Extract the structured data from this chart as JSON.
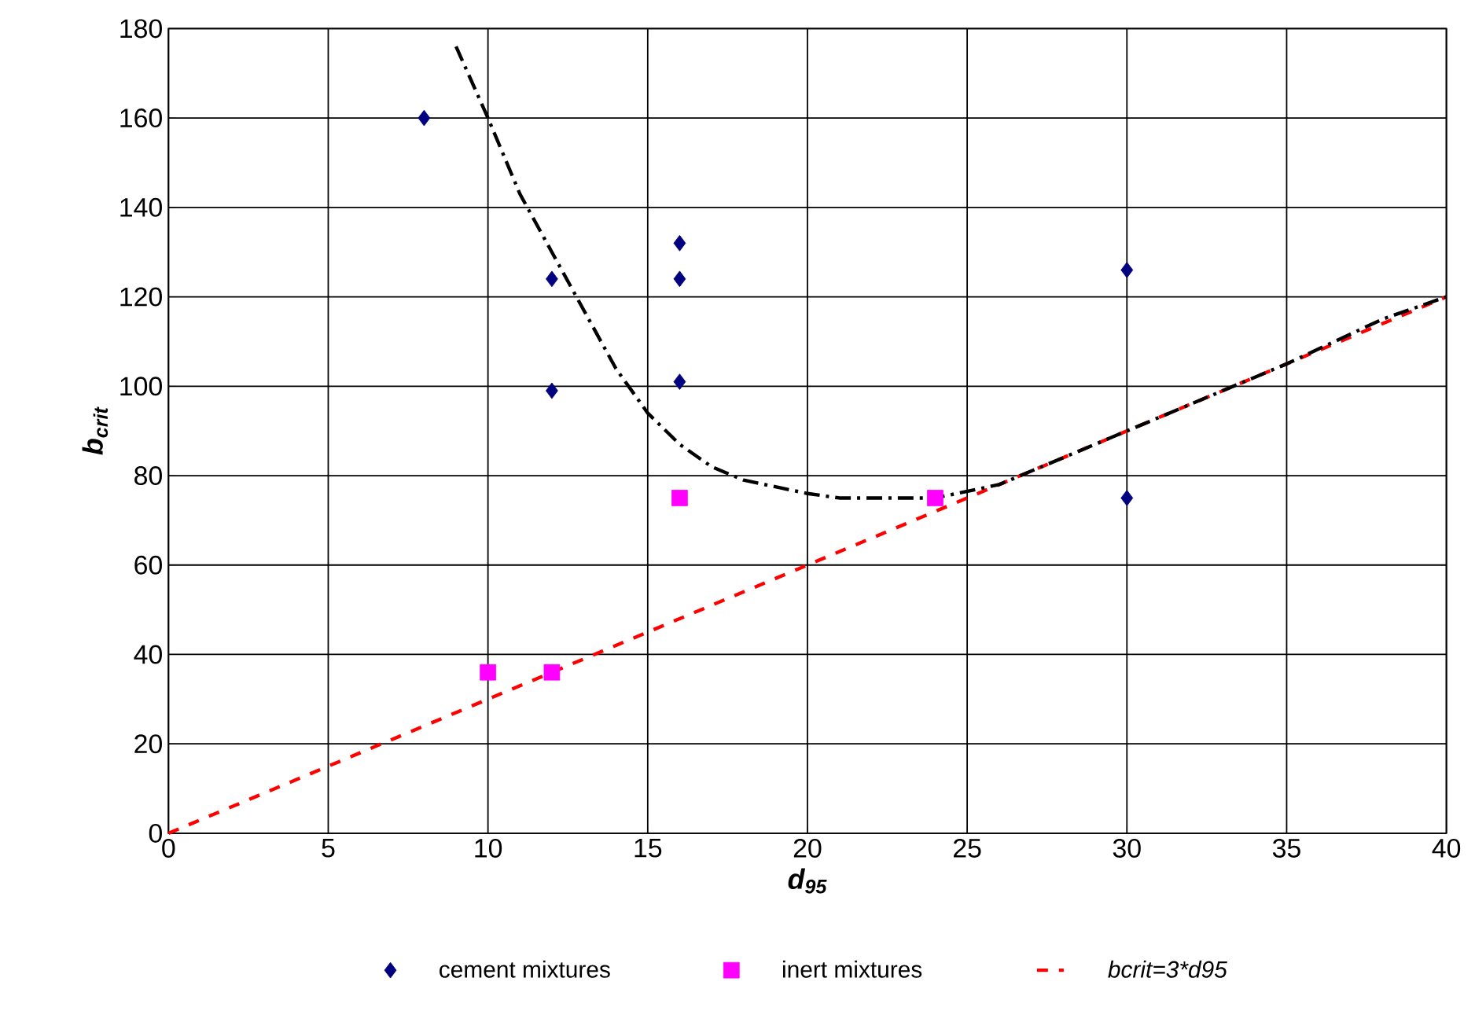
{
  "chart_data": {
    "type": "scatter",
    "xlabel": "d$_{95}$",
    "ylabel": "b$_{crit}$",
    "xlim": [
      0,
      40
    ],
    "xticks": [
      0,
      5,
      10,
      15,
      20,
      25,
      30,
      35,
      40
    ],
    "ylim": [
      0,
      180
    ],
    "yticks": [
      0,
      20,
      40,
      60,
      80,
      100,
      120,
      140,
      160,
      180
    ],
    "grid": true,
    "legend": "bottom",
    "series": [
      {
        "name": "cement mixtures",
        "marker": "diamond",
        "color": "#000080",
        "x": [
          8,
          12,
          12,
          16,
          16,
          16,
          30,
          30
        ],
        "values": [
          160,
          124,
          99,
          132,
          124,
          101,
          126,
          75
        ]
      },
      {
        "name": "inert mixtures",
        "marker": "square",
        "color": "#ff00ff",
        "x": [
          10,
          12,
          16,
          24
        ],
        "values": [
          36,
          36,
          75,
          75
        ]
      },
      {
        "name": "bcrit=3*d95",
        "type": "line",
        "line_style": "dashed",
        "marker": "none",
        "color": "#ff0000",
        "x": [
          0,
          40
        ],
        "values": [
          0,
          120
        ]
      },
      {
        "type": "line",
        "line_style": "dashdot",
        "marker": "none",
        "color": "#000000",
        "x": [
          9,
          10,
          11,
          12,
          13,
          14,
          15,
          16,
          17,
          18,
          20,
          21,
          24,
          26,
          30,
          35,
          38,
          40
        ],
        "values": [
          176,
          160,
          143,
          130,
          117,
          104,
          94,
          87,
          82,
          79,
          76,
          75,
          75,
          78,
          90,
          105,
          115,
          120
        ]
      }
    ]
  }
}
